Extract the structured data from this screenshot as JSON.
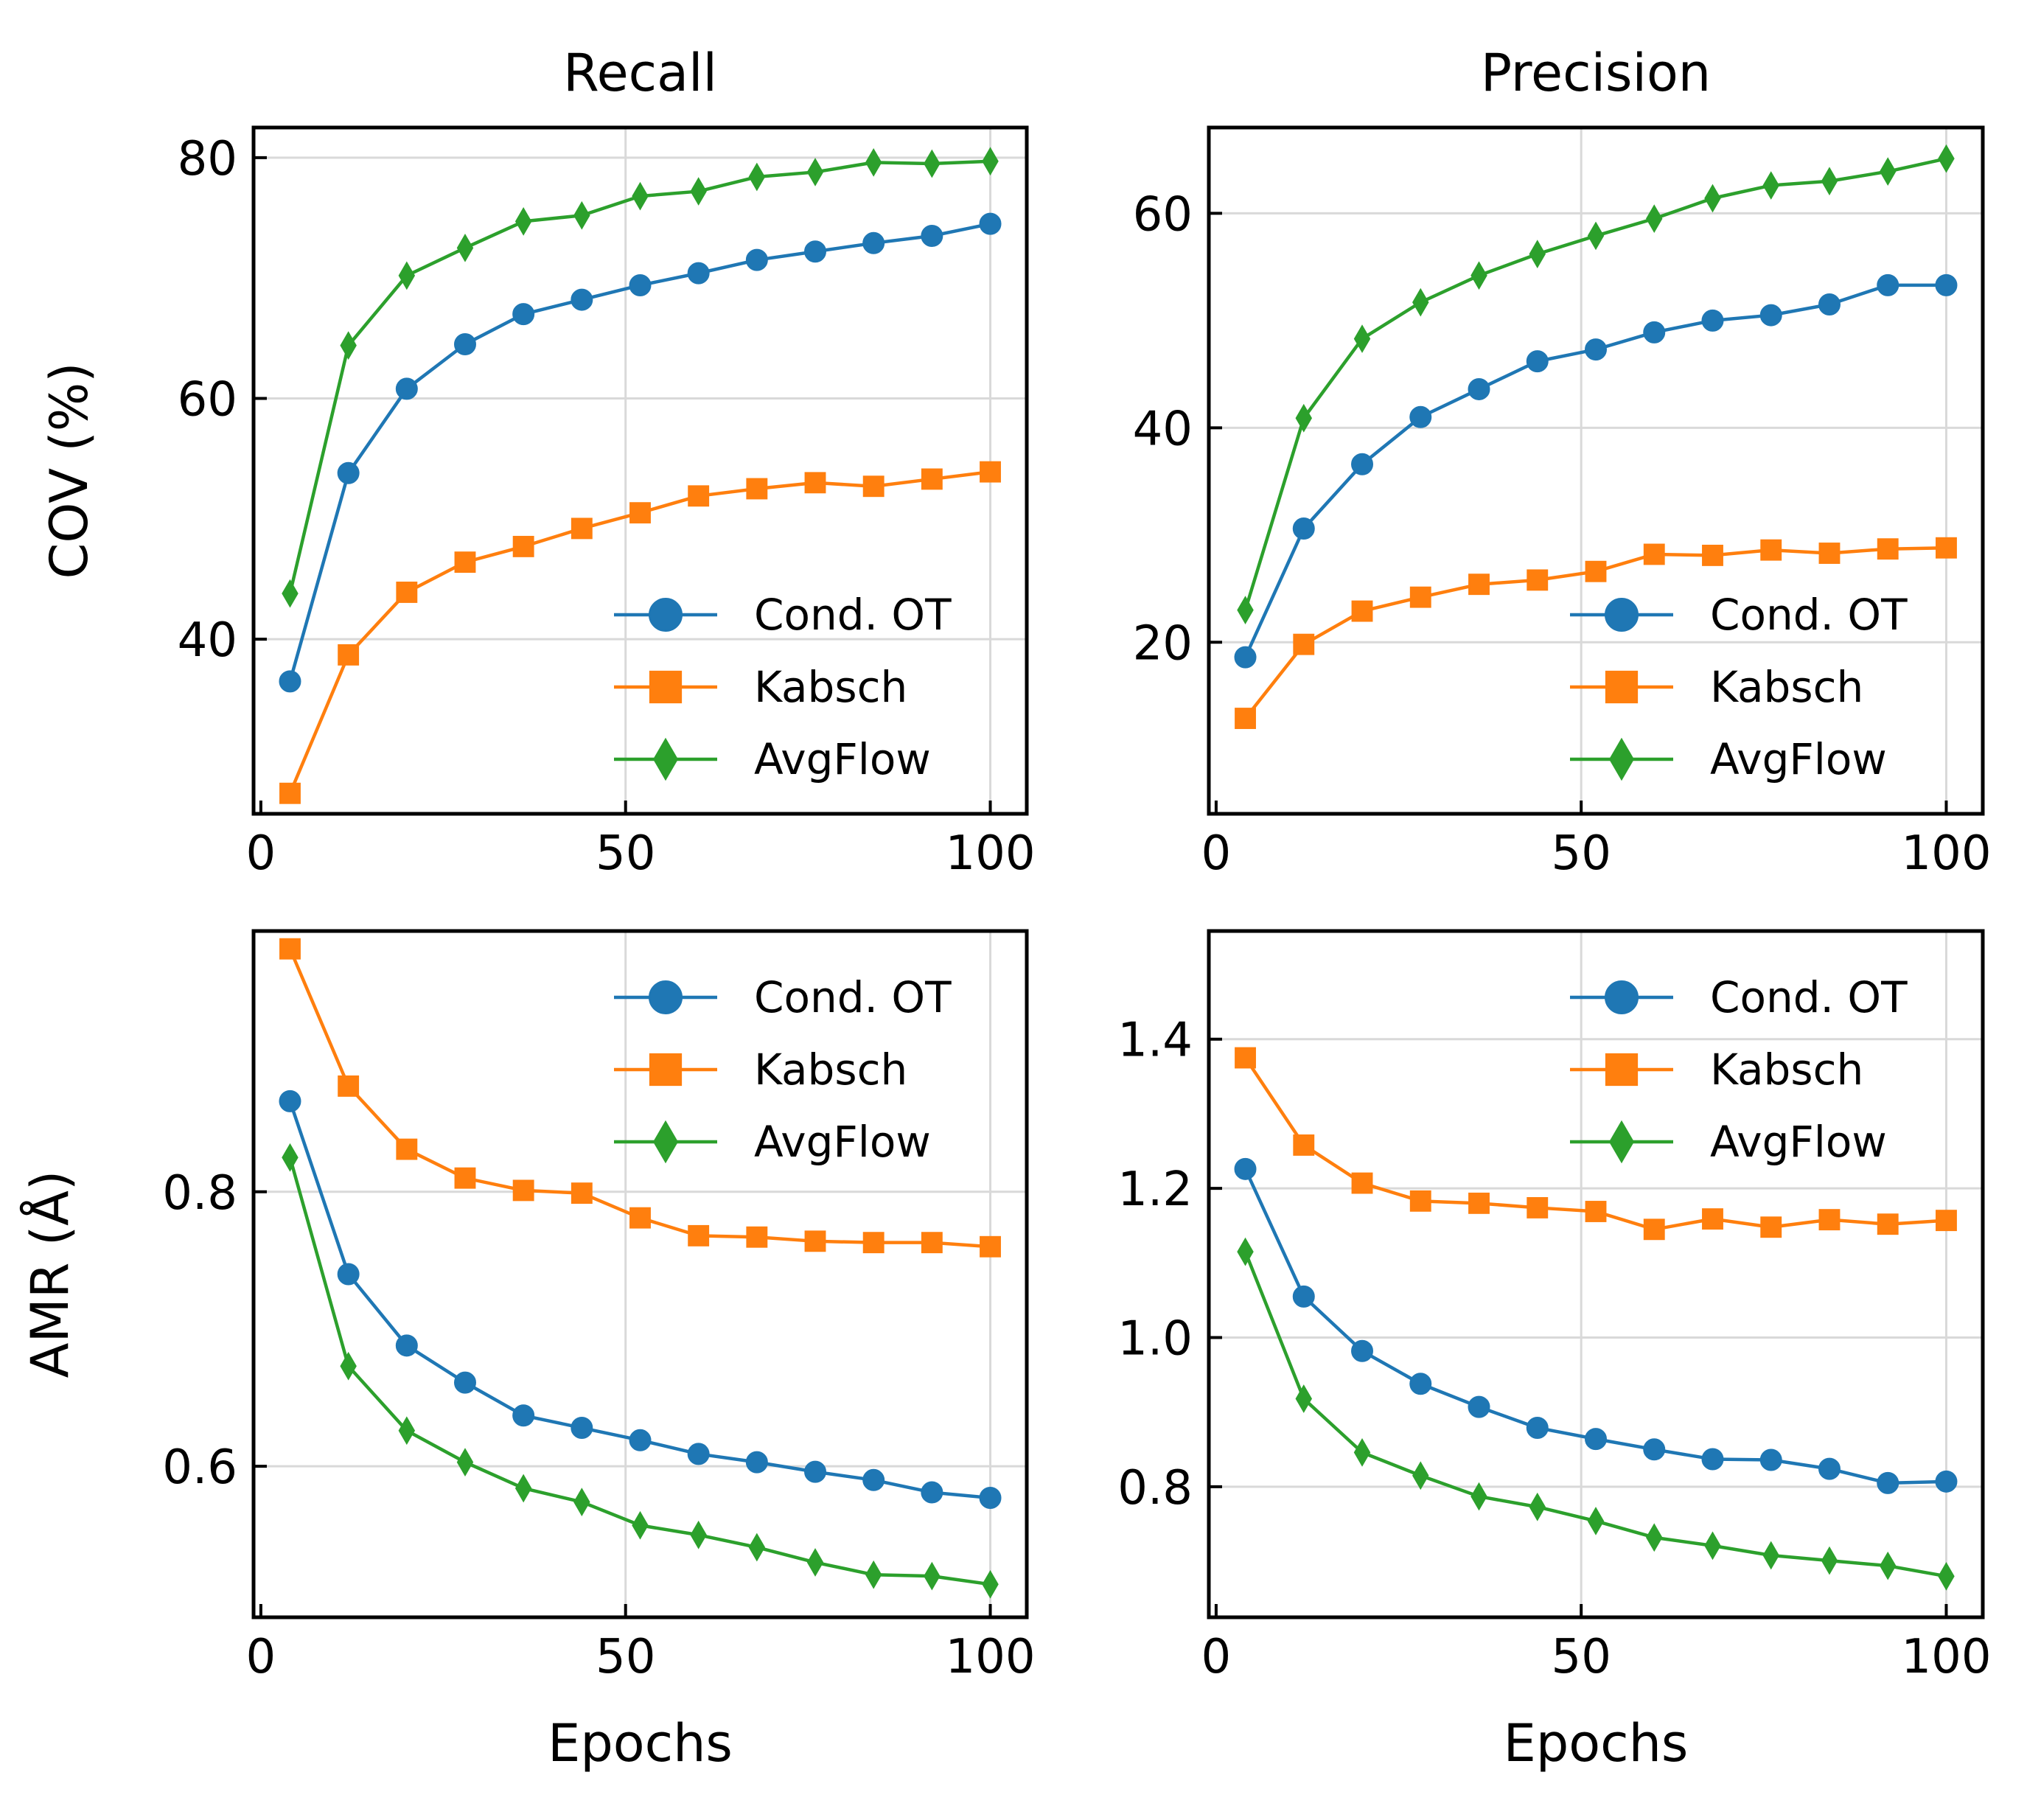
{
  "colors": {
    "Cond. OT": "#1f77b4",
    "Kabsch": "#ff7f0e",
    "AvgFlow": "#2ca02c",
    "grid": "#d9d9d9",
    "axis": "#000000"
  },
  "figure": {
    "shared_xlabel": "Epochs",
    "row_ylabels": [
      "COV (%)",
      "AMR (Å)"
    ]
  },
  "chart_data": [
    {
      "type": "line",
      "title": "Recall",
      "xlabel": "",
      "ylabel": "COV (%)",
      "xlim": [
        -1,
        105
      ],
      "ylim": [
        25.5,
        82.5
      ],
      "xticks": [
        0,
        50,
        100
      ],
      "xtick_labels": [
        "0",
        "50",
        "100"
      ],
      "yticks": [
        40,
        60,
        80
      ],
      "ytick_labels": [
        "40",
        "60",
        "80"
      ],
      "grid": true,
      "legend_position": "lower-right",
      "x": [
        4,
        12,
        20,
        28,
        36,
        44,
        52,
        60,
        68,
        76,
        84,
        92,
        100
      ],
      "series": [
        {
          "name": "Cond. OT",
          "marker": "circle",
          "values": [
            36.5,
            53.8,
            60.8,
            64.5,
            67.0,
            68.2,
            69.4,
            70.4,
            71.5,
            72.2,
            72.9,
            73.5,
            74.5
          ]
        },
        {
          "name": "Kabsch",
          "marker": "square",
          "values": [
            27.2,
            38.7,
            43.9,
            46.4,
            47.7,
            49.2,
            50.5,
            51.9,
            52.5,
            53.0,
            52.7,
            53.3,
            53.9
          ]
        },
        {
          "name": "AvgFlow",
          "marker": "diamond",
          "values": [
            43.8,
            64.4,
            70.2,
            72.5,
            74.7,
            75.2,
            76.8,
            77.2,
            78.4,
            78.8,
            79.6,
            79.5,
            79.7
          ]
        }
      ]
    },
    {
      "type": "line",
      "title": "Precision",
      "xlabel": "",
      "ylabel": "",
      "xlim": [
        -1,
        105
      ],
      "ylim": [
        4,
        68
      ],
      "xticks": [
        0,
        50,
        100
      ],
      "xtick_labels": [
        "0",
        "50",
        "100"
      ],
      "yticks": [
        20,
        40,
        60
      ],
      "ytick_labels": [
        "20",
        "40",
        "60"
      ],
      "grid": true,
      "legend_position": "lower-right",
      "x": [
        4,
        12,
        20,
        28,
        36,
        44,
        52,
        60,
        68,
        76,
        84,
        92,
        100
      ],
      "series": [
        {
          "name": "Cond. OT",
          "marker": "circle",
          "values": [
            18.6,
            30.6,
            36.6,
            41.0,
            43.6,
            46.2,
            47.3,
            48.9,
            50.0,
            50.5,
            51.5,
            53.3,
            53.3
          ]
        },
        {
          "name": "Kabsch",
          "marker": "square",
          "values": [
            12.9,
            19.8,
            22.9,
            24.2,
            25.4,
            25.8,
            26.6,
            28.2,
            28.1,
            28.6,
            28.3,
            28.7,
            28.8
          ]
        },
        {
          "name": "AvgFlow",
          "marker": "diamond",
          "values": [
            23.0,
            40.9,
            48.3,
            51.7,
            54.2,
            56.2,
            57.9,
            59.5,
            61.4,
            62.6,
            63.0,
            63.9,
            65.1
          ]
        }
      ]
    },
    {
      "type": "line",
      "title": "",
      "xlabel": "Epochs",
      "ylabel": "AMR (Å)",
      "xlim": [
        -1,
        105
      ],
      "ylim": [
        0.49,
        0.99
      ],
      "xticks": [
        0,
        50,
        100
      ],
      "xtick_labels": [
        "0",
        "50",
        "100"
      ],
      "yticks": [
        0.6,
        0.8
      ],
      "ytick_labels": [
        "0.6",
        "0.8"
      ],
      "grid": true,
      "legend_position": "upper-right",
      "x": [
        4,
        12,
        20,
        28,
        36,
        44,
        52,
        60,
        68,
        76,
        84,
        92,
        100
      ],
      "series": [
        {
          "name": "Cond. OT",
          "marker": "circle",
          "values": [
            0.866,
            0.74,
            0.688,
            0.661,
            0.637,
            0.628,
            0.619,
            0.609,
            0.603,
            0.596,
            0.59,
            0.581,
            0.577
          ]
        },
        {
          "name": "Kabsch",
          "marker": "square",
          "values": [
            0.977,
            0.877,
            0.831,
            0.81,
            0.801,
            0.799,
            0.781,
            0.768,
            0.767,
            0.764,
            0.763,
            0.763,
            0.76
          ]
        },
        {
          "name": "AvgFlow",
          "marker": "diamond",
          "values": [
            0.825,
            0.673,
            0.626,
            0.603,
            0.584,
            0.574,
            0.557,
            0.55,
            0.541,
            0.53,
            0.521,
            0.52,
            0.514
          ]
        }
      ]
    },
    {
      "type": "line",
      "title": "",
      "xlabel": "Epochs",
      "ylabel": "",
      "xlim": [
        -1,
        105
      ],
      "ylim": [
        0.625,
        1.545
      ],
      "xticks": [
        0,
        50,
        100
      ],
      "xtick_labels": [
        "0",
        "50",
        "100"
      ],
      "yticks": [
        0.8,
        1.0,
        1.2,
        1.4
      ],
      "ytick_labels": [
        "0.8",
        "1.0",
        "1.2",
        "1.4"
      ],
      "grid": true,
      "legend_position": "upper-right",
      "x": [
        4,
        12,
        20,
        28,
        36,
        44,
        52,
        60,
        68,
        76,
        84,
        92,
        100
      ],
      "series": [
        {
          "name": "Cond. OT",
          "marker": "circle",
          "values": [
            1.226,
            1.055,
            0.982,
            0.938,
            0.907,
            0.879,
            0.864,
            0.85,
            0.837,
            0.836,
            0.824,
            0.805,
            0.807
          ]
        },
        {
          "name": "Kabsch",
          "marker": "square",
          "values": [
            1.375,
            1.258,
            1.207,
            1.183,
            1.18,
            1.174,
            1.169,
            1.145,
            1.159,
            1.148,
            1.158,
            1.152,
            1.157
          ]
        },
        {
          "name": "AvgFlow",
          "marker": "diamond",
          "values": [
            1.115,
            0.918,
            0.846,
            0.815,
            0.787,
            0.773,
            0.754,
            0.732,
            0.721,
            0.708,
            0.701,
            0.694,
            0.68
          ]
        }
      ]
    }
  ]
}
